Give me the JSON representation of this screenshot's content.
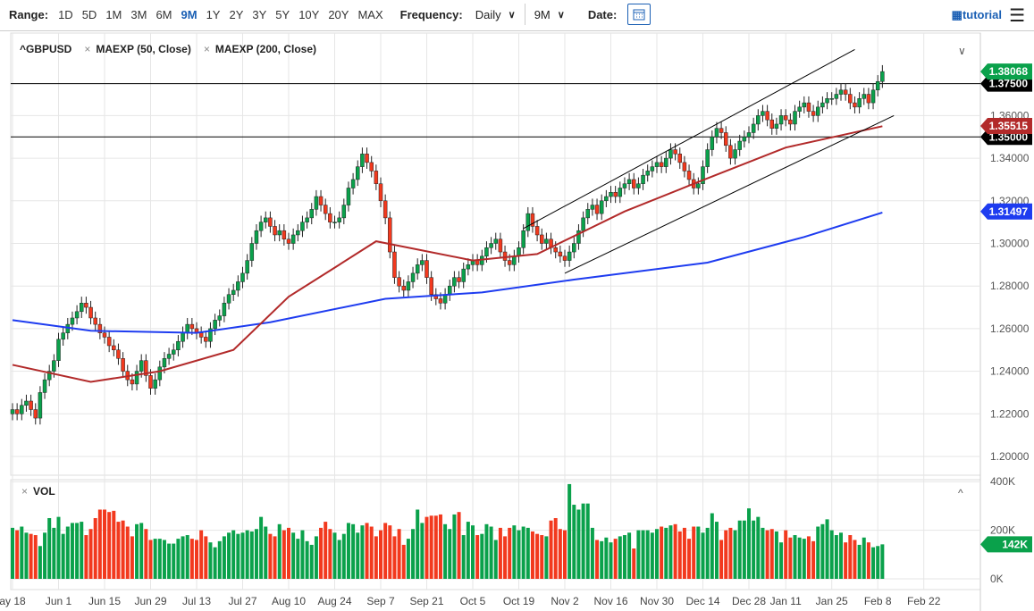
{
  "toolbar": {
    "range_label": "Range:",
    "ranges": [
      "1D",
      "5D",
      "1M",
      "3M",
      "6M",
      "9M",
      "1Y",
      "2Y",
      "3Y",
      "5Y",
      "10Y",
      "20Y",
      "MAX"
    ],
    "active_range": "9M",
    "frequency_label": "Frequency:",
    "frequency": "Daily",
    "period": "9M",
    "date_label": "Date:",
    "tutorial": "tutorial",
    "icons": {
      "calendar": "calendar-icon",
      "menu": "hamburger-icon",
      "tutorial": "grid-icon"
    }
  },
  "legend": {
    "symbol": "^GBPUSD",
    "studies": [
      "MAEXP (50, Close)",
      "MAEXP (200, Close)"
    ],
    "volume": "VOL"
  },
  "colors": {
    "up": "#0aa14b",
    "down": "#f2391e",
    "ma50": "#b22a2a",
    "ma200": "#1e3cf0",
    "last": "#0aa14b",
    "line": "#000000"
  },
  "chart_data": {
    "type": "candlestick",
    "x_ticks": [
      {
        "label": "ay 18",
        "i": 0
      },
      {
        "label": "Jun 1",
        "i": 10
      },
      {
        "label": "Jun 15",
        "i": 20
      },
      {
        "label": "Jun 29",
        "i": 30
      },
      {
        "label": "Jul 13",
        "i": 40
      },
      {
        "label": "Jul 27",
        "i": 50
      },
      {
        "label": "Aug 10",
        "i": 60
      },
      {
        "label": "Aug 24",
        "i": 70
      },
      {
        "label": "Sep 7",
        "i": 80
      },
      {
        "label": "Sep 21",
        "i": 90
      },
      {
        "label": "Oct 5",
        "i": 100
      },
      {
        "label": "Oct 19",
        "i": 110
      },
      {
        "label": "Nov 2",
        "i": 120
      },
      {
        "label": "Nov 16",
        "i": 130
      },
      {
        "label": "Nov 30",
        "i": 140
      },
      {
        "label": "Dec 14",
        "i": 150
      },
      {
        "label": "Dec 28",
        "i": 160
      },
      {
        "label": "Jan 11",
        "i": 168
      },
      {
        "label": "Jan 25",
        "i": 178
      },
      {
        "label": "Feb 8",
        "i": 188
      },
      {
        "label": "Feb 22",
        "i": 198
      }
    ],
    "y_ticks": [
      "1.20000",
      "1.22000",
      "1.24000",
      "1.26000",
      "1.28000",
      "1.30000",
      "1.32000",
      "1.34000",
      "1.36000"
    ],
    "ylim": [
      1.2,
      1.38
    ],
    "close": [
      1.222,
      1.22,
      1.224,
      1.226,
      1.222,
      1.218,
      1.23,
      1.236,
      1.24,
      1.245,
      1.255,
      1.258,
      1.262,
      1.265,
      1.268,
      1.272,
      1.27,
      1.265,
      1.262,
      1.258,
      1.256,
      1.252,
      1.25,
      1.246,
      1.24,
      1.236,
      1.234,
      1.24,
      1.245,
      1.238,
      1.232,
      1.236,
      1.242,
      1.246,
      1.248,
      1.25,
      1.254,
      1.258,
      1.262,
      1.26,
      1.258,
      1.256,
      1.254,
      1.26,
      1.264,
      1.266,
      1.272,
      1.276,
      1.278,
      1.282,
      1.286,
      1.292,
      1.3,
      1.306,
      1.31,
      1.312,
      1.308,
      1.304,
      1.306,
      1.302,
      1.3,
      1.304,
      1.306,
      1.31,
      1.312,
      1.316,
      1.322,
      1.318,
      1.314,
      1.31,
      1.31,
      1.312,
      1.318,
      1.326,
      1.33,
      1.336,
      1.342,
      1.338,
      1.334,
      1.328,
      1.32,
      1.312,
      1.296,
      1.284,
      1.28,
      1.278,
      1.282,
      1.286,
      1.29,
      1.292,
      1.284,
      1.276,
      1.274,
      1.272,
      1.276,
      1.28,
      1.284,
      1.282,
      1.288,
      1.29,
      1.292,
      1.29,
      1.294,
      1.298,
      1.3,
      1.302,
      1.296,
      1.292,
      1.29,
      1.294,
      1.298,
      1.306,
      1.314,
      1.308,
      1.304,
      1.3,
      1.302,
      1.298,
      1.296,
      1.294,
      1.292,
      1.296,
      1.3,
      1.306,
      1.312,
      1.316,
      1.318,
      1.314,
      1.32,
      1.322,
      1.324,
      1.322,
      1.326,
      1.328,
      1.33,
      1.326,
      1.328,
      1.332,
      1.334,
      1.336,
      1.338,
      1.336,
      1.34,
      1.344,
      1.342,
      1.338,
      1.334,
      1.33,
      1.326,
      1.328,
      1.336,
      1.344,
      1.35,
      1.354,
      1.352,
      1.346,
      1.34,
      1.344,
      1.348,
      1.35,
      1.352,
      1.356,
      1.36,
      1.362,
      1.358,
      1.354,
      1.356,
      1.36,
      1.358,
      1.356,
      1.362,
      1.364,
      1.366,
      1.362,
      1.36,
      1.364,
      1.366,
      1.368,
      1.368,
      1.37,
      1.372,
      1.37,
      1.366,
      1.364,
      1.368,
      1.37,
      1.366,
      1.372,
      1.376,
      1.38068
    ],
    "volume_k": [
      210,
      200,
      215,
      190,
      185,
      180,
      135,
      190,
      250,
      210,
      255,
      185,
      215,
      230,
      230,
      235,
      180,
      205,
      250,
      285,
      285,
      275,
      280,
      235,
      240,
      215,
      175,
      225,
      230,
      205,
      160,
      165,
      165,
      160,
      145,
      145,
      165,
      175,
      180,
      165,
      160,
      200,
      175,
      150,
      130,
      155,
      175,
      190,
      200,
      185,
      190,
      200,
      195,
      205,
      255,
      215,
      185,
      175,
      225,
      200,
      210,
      190,
      165,
      200,
      155,
      140,
      175,
      210,
      235,
      205,
      190,
      160,
      185,
      230,
      225,
      190,
      220,
      230,
      215,
      175,
      200,
      230,
      220,
      175,
      205,
      140,
      165,
      205,
      285,
      230,
      255,
      260,
      260,
      265,
      225,
      205,
      265,
      275,
      180,
      235,
      220,
      180,
      185,
      225,
      215,
      160,
      210,
      175,
      210,
      220,
      200,
      215,
      210,
      195,
      185,
      180,
      175,
      240,
      250,
      205,
      200,
      390,
      305,
      285,
      310,
      310,
      210,
      160,
      155,
      170,
      150,
      165,
      175,
      180,
      190,
      125,
      200,
      200,
      200,
      190,
      205,
      215,
      210,
      220,
      225,
      195,
      210,
      165,
      215,
      215,
      190,
      210,
      270,
      235,
      160,
      200,
      210,
      200,
      240,
      240,
      290,
      240,
      255,
      210,
      200,
      205,
      195,
      150,
      200,
      170,
      180,
      170,
      165,
      175,
      155,
      215,
      225,
      245,
      200,
      180,
      190,
      150,
      180,
      160,
      140,
      170,
      150,
      130,
      135,
      142
    ],
    "ma50": [
      [
        0,
        1.243
      ],
      [
        17,
        1.235
      ],
      [
        32,
        1.24
      ],
      [
        48,
        1.25
      ],
      [
        60,
        1.275
      ],
      [
        71,
        1.29
      ],
      [
        79,
        1.301
      ],
      [
        86,
        1.298
      ],
      [
        100,
        1.292
      ],
      [
        114,
        1.295
      ],
      [
        133,
        1.315
      ],
      [
        148,
        1.328
      ],
      [
        168,
        1.345
      ],
      [
        189,
        1.355
      ]
    ],
    "ma200": [
      [
        0,
        1.264
      ],
      [
        17,
        1.259
      ],
      [
        40,
        1.258
      ],
      [
        56,
        1.263
      ],
      [
        81,
        1.274
      ],
      [
        102,
        1.277
      ],
      [
        122,
        1.283
      ],
      [
        151,
        1.291
      ],
      [
        172,
        1.303
      ],
      [
        189,
        1.3145
      ]
    ],
    "trendlines": [
      [
        [
          111,
          1.307
        ],
        [
          183,
          1.391
        ]
      ],
      [
        [
          120,
          1.286
        ],
        [
          191.5,
          1.36
        ]
      ]
    ],
    "horizontal_lines": [
      1.375,
      1.35
    ],
    "price_labels": [
      {
        "value": "1.38068",
        "color": "#0aa14b",
        "price": 1.38068
      },
      {
        "value": "1.37500",
        "color": "#000000",
        "price": 1.375
      },
      {
        "value": "1.35515",
        "color": "#b22a2a",
        "price": 1.35515
      },
      {
        "value": "1.35000",
        "color": "#000000",
        "price": 1.35
      },
      {
        "value": "1.31497",
        "color": "#1e3cf0",
        "price": 1.31497
      }
    ],
    "volume_ticks": [
      "0K",
      "200K",
      "400K"
    ],
    "volume_last": "142K"
  }
}
